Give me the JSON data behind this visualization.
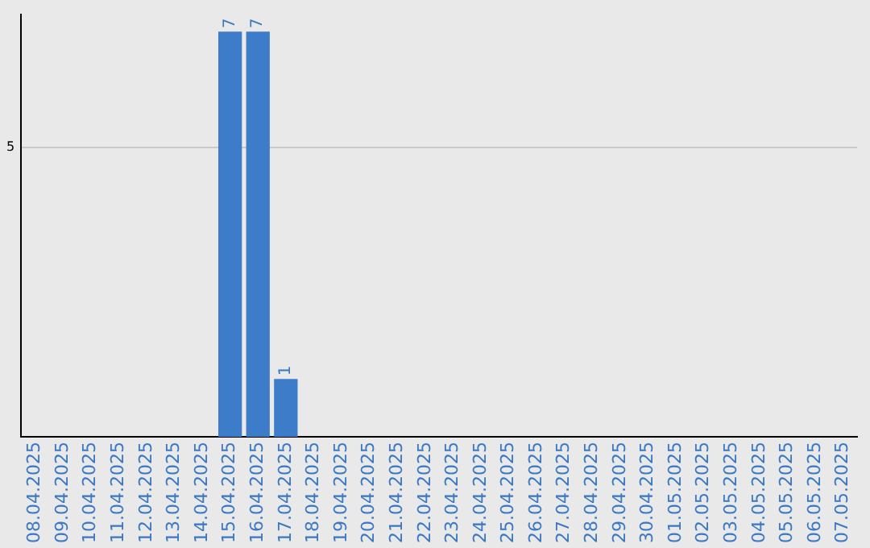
{
  "chart_data": {
    "type": "bar",
    "categories": [
      "08.04.2025",
      "09.04.2025",
      "10.04.2025",
      "11.04.2025",
      "12.04.2025",
      "13.04.2025",
      "14.04.2025",
      "15.04.2025",
      "16.04.2025",
      "17.04.2025",
      "18.04.2025",
      "19.04.2025",
      "20.04.2025",
      "21.04.2025",
      "22.04.2025",
      "23.04.2025",
      "24.04.2025",
      "25.04.2025",
      "26.04.2025",
      "27.04.2025",
      "28.04.2025",
      "29.04.2025",
      "30.04.2025",
      "01.05.2025",
      "02.05.2025",
      "03.05.2025",
      "04.05.2025",
      "05.05.2025",
      "06.05.2025",
      "07.05.2025"
    ],
    "values": [
      0,
      0,
      0,
      0,
      0,
      0,
      0,
      7,
      7,
      1,
      0,
      0,
      0,
      0,
      0,
      0,
      0,
      0,
      0,
      0,
      0,
      0,
      0,
      0,
      0,
      0,
      0,
      0,
      0,
      0
    ],
    "value_labels": [
      null,
      null,
      null,
      null,
      null,
      null,
      null,
      "7",
      "7",
      "1",
      null,
      null,
      null,
      null,
      null,
      null,
      null,
      null,
      null,
      null,
      null,
      null,
      null,
      null,
      null,
      null,
      null,
      null,
      null,
      null
    ],
    "color": "#3d7cc9",
    "ylim": [
      0,
      7.3
    ],
    "yticks": [
      5
    ],
    "grid": "y",
    "legend": false
  }
}
